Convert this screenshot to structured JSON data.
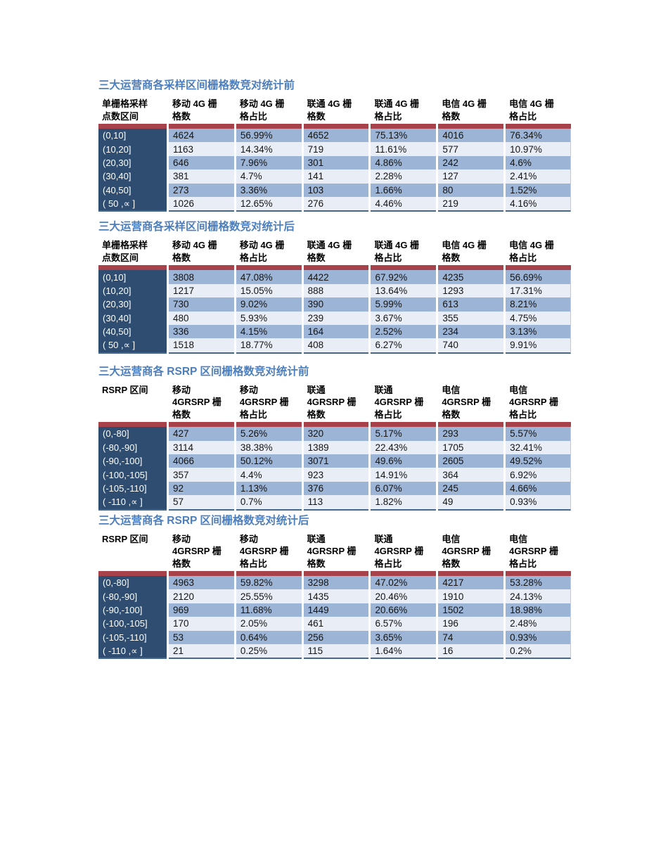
{
  "colors": {
    "title_blue": "#4d7ebd",
    "red_separator": "#a8424a",
    "first_column_bg": "#2e4d70",
    "band_dark_blue": "#9cb4d6",
    "band_light_blue": "#e9edf5",
    "table_bottom_border": "#44688f",
    "header_text": "#000000",
    "data_text": "#141414",
    "page_background": "#ffffff"
  },
  "tables": [
    {
      "title": "三大运营商各采样区间栅格数竞对统计前",
      "columns": [
        "单栅格采样\n点数区间",
        "移动 4G 栅\n格数",
        "移动 4G 栅\n格占比",
        "联通 4G 栅\n格数",
        "联通 4G 栅\n格占比",
        "电信 4G 栅\n格数",
        "电信 4G 栅\n格占比"
      ],
      "rows": [
        [
          "(0,10]",
          "4624",
          "56.99%",
          "4652",
          "75.13%",
          "4016",
          "76.34%"
        ],
        [
          "(10,20]",
          "1163",
          "14.34%",
          "719",
          "11.61%",
          "577",
          "10.97%"
        ],
        [
          "(20,30]",
          "646",
          "7.96%",
          "301",
          "4.86%",
          "242",
          "4.6%"
        ],
        [
          "(30,40]",
          "381",
          "4.7%",
          "141",
          "2.28%",
          "127",
          "2.41%"
        ],
        [
          "(40,50]",
          "273",
          "3.36%",
          "103",
          "1.66%",
          "80",
          "1.52%"
        ],
        [
          "( 50 ,∝  ]",
          "1026",
          "12.65%",
          "276",
          "4.46%",
          "219",
          "4.16%"
        ]
      ]
    },
    {
      "title": "三大运营商各采样区间栅格数竞对统计后",
      "columns": [
        "单栅格采样\n点数区间",
        "移动 4G 栅\n格数",
        "移动 4G 栅\n格占比",
        "联通 4G 栅\n格数",
        "联通 4G 栅\n格占比",
        "电信 4G 栅\n格数",
        "电信 4G 栅\n格占比"
      ],
      "rows": [
        [
          "(0,10]",
          "3808",
          "47.08%",
          "4422",
          "67.92%",
          "4235",
          "56.69%"
        ],
        [
          "(10,20]",
          "1217",
          "15.05%",
          "888",
          "13.64%",
          "1293",
          "17.31%"
        ],
        [
          "(20,30]",
          "730",
          "9.02%",
          "390",
          "5.99%",
          "613",
          "8.21%"
        ],
        [
          "(30,40]",
          "480",
          "5.93%",
          "239",
          "3.67%",
          "355",
          "4.75%"
        ],
        [
          "(40,50]",
          "336",
          "4.15%",
          "164",
          "2.52%",
          "234",
          "3.13%"
        ],
        [
          "( 50 ,∝  ]",
          "1518",
          "18.77%",
          "408",
          "6.27%",
          "740",
          "9.91%"
        ]
      ]
    },
    {
      "title": "三大运营商各 RSRP 区间栅格数竞对统计前",
      "columns": [
        "RSRP 区间",
        "移动\n4GRSRP 栅\n格数",
        "移动\n4GRSRP 栅\n格占比",
        "联通\n4GRSRP 栅\n格数",
        "联通\n4GRSRP 栅\n格占比",
        "电信\n4GRSRP 栅\n格数",
        "电信\n4GRSRP 栅\n格占比"
      ],
      "rows": [
        [
          "(0,-80]",
          "427",
          "5.26%",
          "320",
          "5.17%",
          "293",
          "5.57%"
        ],
        [
          "(-80,-90]",
          "3114",
          "38.38%",
          "1389",
          "22.43%",
          "1705",
          "32.41%"
        ],
        [
          "(-90,-100]",
          "4066",
          "50.12%",
          "3071",
          "49.6%",
          "2605",
          "49.52%"
        ],
        [
          "(-100,-105]",
          "357",
          "4.4%",
          "923",
          "14.91%",
          "364",
          "6.92%"
        ],
        [
          "(-105,-110]",
          "92",
          "1.13%",
          "376",
          "6.07%",
          "245",
          "4.66%"
        ],
        [
          "( -110 ,∝  ]",
          "57",
          "0.7%",
          "113",
          "1.82%",
          "49",
          "0.93%"
        ]
      ]
    },
    {
      "title": "三大运营商各 RSRP 区间栅格数竞对统计后",
      "columns": [
        "RSRP 区间",
        "移动\n4GRSRP 栅\n格数",
        "移动\n4GRSRP 栅\n格占比",
        "联通\n4GRSRP 栅\n格数",
        "联通\n4GRSRP 栅\n格占比",
        "电信\n4GRSRP 栅\n格数",
        "电信\n4GRSRP 栅\n格占比"
      ],
      "rows": [
        [
          "(0,-80]",
          "4963",
          "59.82%",
          "3298",
          "47.02%",
          "4217",
          "53.28%"
        ],
        [
          "(-80,-90]",
          "2120",
          "25.55%",
          "1435",
          "20.46%",
          "1910",
          "24.13%"
        ],
        [
          "(-90,-100]",
          "969",
          "11.68%",
          "1449",
          "20.66%",
          "1502",
          "18.98%"
        ],
        [
          "(-100,-105]",
          "170",
          "2.05%",
          "461",
          "6.57%",
          "196",
          "2.48%"
        ],
        [
          "(-105,-110]",
          "53",
          "0.64%",
          "256",
          "3.65%",
          "74",
          "0.93%"
        ],
        [
          "( -110 ,∝  ]",
          "21",
          "0.25%",
          "115",
          "1.64%",
          "16",
          "0.2%"
        ]
      ]
    }
  ]
}
